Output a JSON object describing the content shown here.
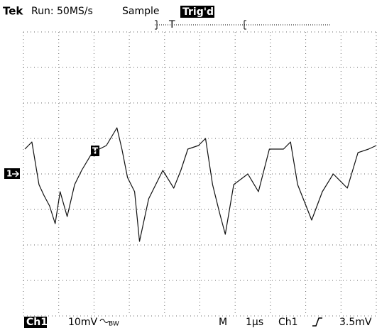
{
  "status": {
    "brand": "Tek",
    "acquisition": "Run: 50MS/s",
    "mode": "Sample",
    "trigger_state": "Trig'd",
    "record_marker": "T"
  },
  "readout": {
    "channel": "Ch1",
    "scale": "10mV",
    "bandwidth": "BW",
    "timebase_label": "M",
    "timebase": "1µs",
    "trigger_source": "Ch1",
    "trigger_level": "3.5mV"
  },
  "chart_data": {
    "type": "line",
    "channel_marker": "1",
    "trigger_marker": "T",
    "x": [
      0.04,
      0.24,
      0.44,
      0.58,
      0.74,
      0.9,
      1.04,
      1.24,
      1.45,
      1.65,
      1.95,
      2.35,
      2.65,
      2.79,
      2.95,
      3.15,
      3.29,
      3.55,
      3.95,
      4.26,
      4.46,
      4.66,
      4.96,
      5.16,
      5.36,
      5.56,
      5.72,
      5.96,
      6.36,
      6.66,
      6.97,
      7.37,
      7.57,
      7.77,
      7.97,
      8.17,
      8.47,
      8.78,
      9.18,
      9.48,
      9.78,
      10
    ],
    "series": [
      {
        "color": "#111111",
        "values": [
          0.7,
          0.9,
          -0.3,
          -0.6,
          -0.9,
          -1.4,
          -0.5,
          -1.2,
          -0.3,
          0.1,
          0.6,
          0.8,
          1.3,
          0.7,
          -0.1,
          -0.5,
          -1.9,
          -0.7,
          0.1,
          -0.4,
          0.1,
          0.7,
          0.8,
          1.0,
          -0.3,
          -1.1,
          -1.7,
          -0.3,
          0,
          -0.5,
          0.7,
          0.7,
          0.9,
          -0.3,
          -0.8,
          -1.3,
          -0.5,
          0,
          -0.4,
          0.6,
          0.7,
          0.8
        ]
      }
    ],
    "xlim": [
      0,
      10
    ],
    "ylim": [
      -4,
      4
    ],
    "xticks": [
      0,
      1,
      2,
      3,
      4,
      5,
      6,
      7,
      8,
      9,
      10
    ],
    "yticks": [
      -4,
      -3,
      -2,
      -1,
      0,
      1,
      2,
      3,
      4
    ],
    "grid": true
  }
}
